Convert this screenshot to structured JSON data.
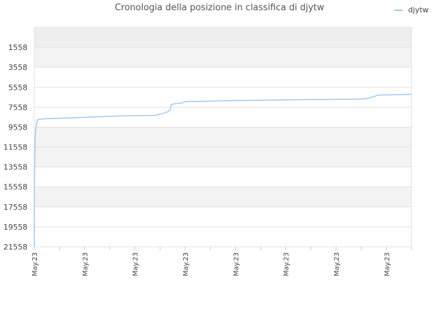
{
  "chart_data": {
    "type": "line",
    "title": "Cronologia della posizione in classifica di djytw",
    "xlabel": "",
    "ylabel": "",
    "y_inverted": true,
    "ylim": [
      21558,
      -442
    ],
    "y_ticks": [
      1558,
      3558,
      5558,
      7558,
      9558,
      11558,
      13558,
      15558,
      17558,
      19558,
      21558
    ],
    "x_tick_labels": [
      "May.23",
      "May.23",
      "May.23",
      "May.23",
      "May.23",
      "May.23",
      "May.23",
      "May.23",
      "May.23",
      "May.23",
      "May.23",
      "May.23",
      "May.23",
      "May.23",
      "May.23",
      "May.23"
    ],
    "grid": true,
    "legend_position": "top-right",
    "series": [
      {
        "name": "djytw",
        "color": "#9fc8ef",
        "points": [
          [
            0.0,
            21558
          ],
          [
            0.05,
            15500
          ],
          [
            0.1,
            13200
          ],
          [
            0.2,
            11000
          ],
          [
            0.3,
            10000
          ],
          [
            0.5,
            9300
          ],
          [
            0.9,
            8800
          ],
          [
            1.5,
            8750
          ],
          [
            3.0,
            8730
          ],
          [
            4.0,
            8700
          ],
          [
            7.0,
            8670
          ],
          [
            8.0,
            8650
          ],
          [
            11.0,
            8620
          ],
          [
            12.0,
            8600
          ],
          [
            14.0,
            8560
          ],
          [
            15.0,
            8550
          ],
          [
            18.0,
            8500
          ],
          [
            19.0,
            8480
          ],
          [
            22.0,
            8450
          ],
          [
            23.0,
            8430
          ],
          [
            28.0,
            8400
          ],
          [
            32.0,
            8380
          ],
          [
            34.0,
            8200
          ],
          [
            35.5,
            8000
          ],
          [
            36.0,
            7800
          ],
          [
            36.3,
            7300
          ],
          [
            37.5,
            7200
          ],
          [
            39.0,
            7150
          ],
          [
            40.0,
            7000
          ],
          [
            42.0,
            6980
          ],
          [
            47.0,
            6950
          ],
          [
            51.0,
            6900
          ],
          [
            56.0,
            6880
          ],
          [
            60.0,
            6860
          ],
          [
            65.0,
            6840
          ],
          [
            68.0,
            6820
          ],
          [
            72.0,
            6800
          ],
          [
            76.0,
            6790
          ],
          [
            78.0,
            6780
          ],
          [
            80.0,
            6770
          ],
          [
            84.0,
            6760
          ],
          [
            85.0,
            6740
          ],
          [
            87.0,
            6730
          ],
          [
            88.0,
            6700
          ],
          [
            90.0,
            6500
          ],
          [
            91.0,
            6350
          ],
          [
            93.0,
            6330
          ],
          [
            95.0,
            6310
          ],
          [
            97.0,
            6300
          ],
          [
            100.0,
            6250
          ]
        ]
      }
    ]
  }
}
